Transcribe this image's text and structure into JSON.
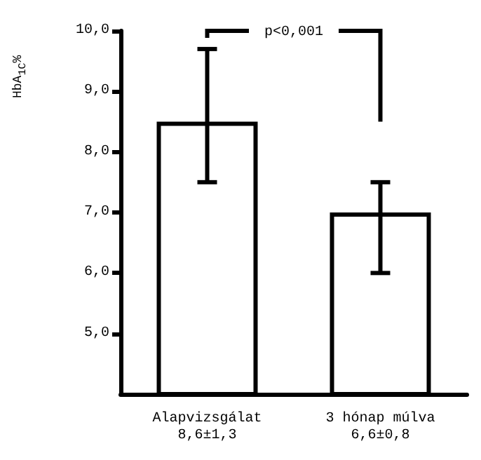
{
  "chart_data": {
    "type": "bar",
    "ylabel": "HbA$_{1C}$%",
    "categories": [
      "Alapvizsgálat\n8,6±1,3",
      "3 hónap múlva\n6,6±0,8"
    ],
    "values": [
      8.5,
      7.0
    ],
    "color": "#ffffff",
    "errors": [
      [
        7.5,
        9.7
      ],
      [
        6.0,
        7.5
      ]
    ],
    "ylim": [
      4,
      10
    ],
    "yticks": [
      {
        "value": 5,
        "label": "5,0"
      },
      {
        "value": 6,
        "label": "6,0"
      },
      {
        "value": 7,
        "label": "7,0"
      },
      {
        "value": 8,
        "label": "8,0"
      },
      {
        "value": 9,
        "label": "9,0"
      },
      {
        "value": 10,
        "label": "10,0"
      }
    ],
    "annotations": [
      "p<0,001"
    ],
    "grid": false
  }
}
